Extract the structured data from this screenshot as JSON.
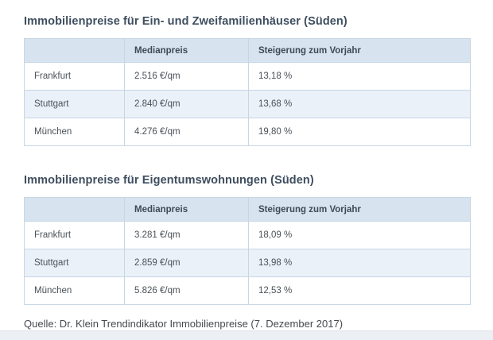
{
  "colors": {
    "title_text": "#3e4e5f",
    "header_background": "#d7e4f0",
    "header_text": "#3d4a58",
    "row_stripe_background": "#eaf1f8",
    "table_border": "#c7d6e4",
    "cell_text": "#4a5157",
    "bottom_bar_background": "#eceff3"
  },
  "tables": [
    {
      "title": "Immobilienpreise für Ein- und Zweifamilienhäuser (Süden)",
      "columns": [
        "",
        "Medianpreis",
        "Steigerung zum Vorjahr"
      ],
      "rows": [
        {
          "city": "Frankfurt",
          "median": "2.516 €/qm",
          "change": "13,18 %"
        },
        {
          "city": "Stuttgart",
          "median": "2.840 €/qm",
          "change": "13,68 %"
        },
        {
          "city": "München",
          "median": "4.276 €/qm",
          "change": "19,80 %"
        }
      ]
    },
    {
      "title": "Immobilienpreise für Eigentumswohnungen (Süden)",
      "columns": [
        "",
        "Medianpreis",
        "Steigerung zum Vorjahr"
      ],
      "rows": [
        {
          "city": "Frankfurt",
          "median": "3.281 €/qm",
          "change": "18,09 %"
        },
        {
          "city": "Stuttgart",
          "median": "2.859 €/qm",
          "change": "13,98 %"
        },
        {
          "city": "München",
          "median": "5.826 €/qm",
          "change": "12,53 %"
        }
      ]
    }
  ],
  "footer": {
    "source": "Quelle: Dr. Klein Trendindikator Immobilienpreise (7. Dezember 2017)"
  }
}
